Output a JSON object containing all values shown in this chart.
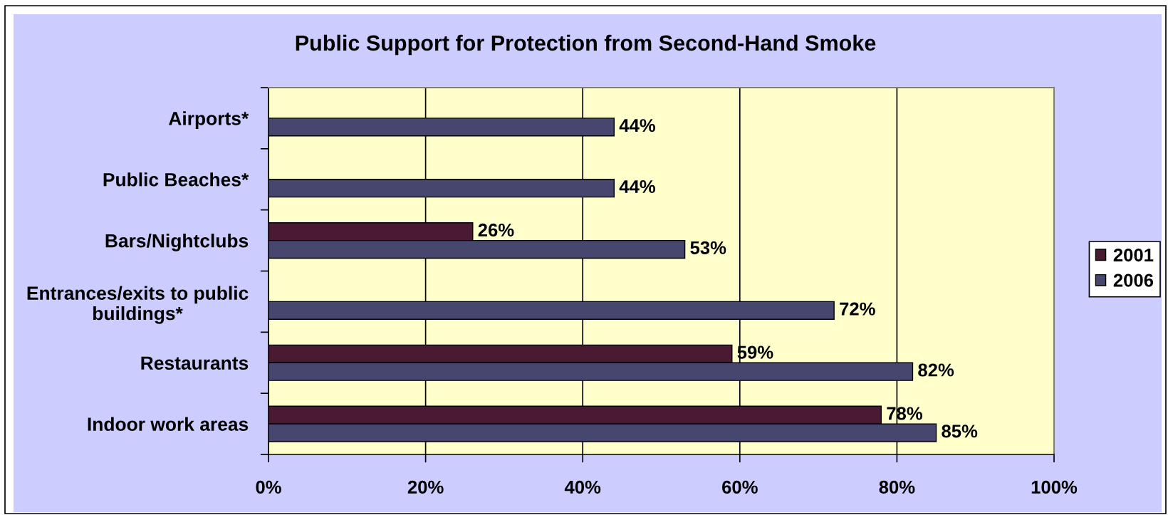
{
  "chart_data": {
    "type": "bar",
    "orientation": "horizontal",
    "title": "Public Support for Protection from Second-Hand Smoke",
    "categories": [
      "Airports*",
      "Public Beaches*",
      "Bars/Nightclubs",
      "Entrances/exits to public\nbuildings*",
      "Restaurants",
      "Indoor work areas"
    ],
    "series": [
      {
        "name": "2001",
        "color": "#4a1932",
        "values": [
          null,
          null,
          26,
          null,
          59,
          78
        ],
        "value_labels": [
          null,
          null,
          "26%",
          null,
          "59%",
          "78%"
        ]
      },
      {
        "name": "2006",
        "color": "#46466f",
        "values": [
          44,
          44,
          53,
          72,
          82,
          85
        ],
        "value_labels": [
          "44%",
          "44%",
          "53%",
          "72%",
          "82%",
          "85%"
        ]
      }
    ],
    "xlim": [
      0,
      100
    ],
    "xticks": [
      {
        "value": 0,
        "label": "0%"
      },
      {
        "value": 20,
        "label": "20%"
      },
      {
        "value": 40,
        "label": "40%"
      },
      {
        "value": 60,
        "label": "60%"
      },
      {
        "value": 80,
        "label": "80%"
      },
      {
        "value": 100,
        "label": "100%"
      }
    ],
    "grid": "x",
    "legend": "right"
  }
}
